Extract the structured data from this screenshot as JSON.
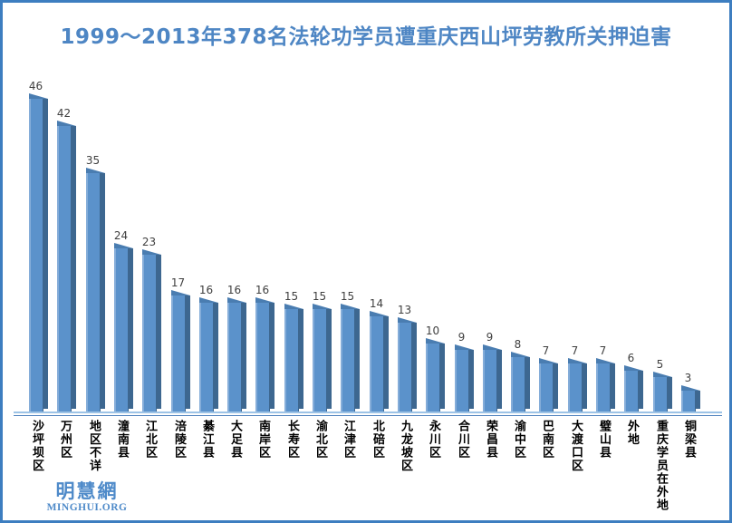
{
  "title": {
    "text": "1999～2013年378名法轮功学员遭重庆西山坪劳教所关押迫害"
  },
  "chart_data": {
    "type": "bar",
    "style": "3d-column",
    "orientation": "vertical",
    "title": "1999～2013年378名法轮功学员遭重庆西山坪劳教所关押迫害",
    "categories": [
      "沙坪坝区",
      "万州区",
      "地区不详",
      "潼南县",
      "江北区",
      "涪陵区",
      "綦江县",
      "大足县",
      "南岸区",
      "长寿区",
      "渝北区",
      "江津区",
      "北碚区",
      "九龙坡区",
      "永川区",
      "合川区",
      "荣昌县",
      "渝中区",
      "巴南区",
      "大渡口区",
      "璧山县",
      "外地",
      "重庆学员在外地",
      "铜梁县"
    ],
    "values": [
      46,
      42,
      35,
      24,
      23,
      17,
      16,
      16,
      16,
      15,
      15,
      15,
      14,
      13,
      10,
      9,
      9,
      8,
      7,
      7,
      7,
      6,
      5,
      3
    ],
    "total": 378,
    "xlabel": "",
    "ylabel": "",
    "ylim": [
      0,
      50
    ],
    "grid": false,
    "legend": null,
    "value_labels_shown": true,
    "category_label_orientation": "vertical-stacked"
  },
  "logo": {
    "cjk": "明慧網",
    "latin": "MINGHUI.ORG"
  },
  "colors": {
    "frame_border": "#3d7ec0",
    "background": "#ffffff",
    "title_text": "#4e86c4",
    "bar_face": "#5b92cb",
    "bar_face_highlight": "#85add9",
    "bar_side": "#3d6790",
    "bar_top": "#4a7db1",
    "axis_line_light": "#9dc3e6",
    "axis_line_dark": "#4f81bd",
    "value_label": "#404040",
    "category_label": "#000000",
    "logo_blue": "#4e8ac9"
  }
}
